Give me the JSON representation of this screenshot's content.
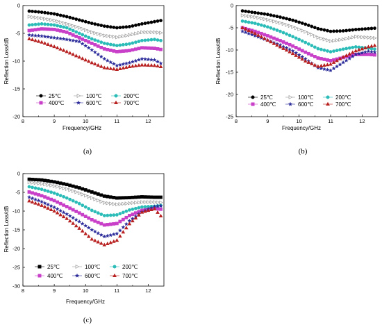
{
  "series_styles": [
    {
      "color": "#000000",
      "marker": "circle",
      "fill": true
    },
    {
      "color": "#9a9a9a",
      "marker": "triangle-right",
      "fill": false
    },
    {
      "color": "#2bbcb8",
      "marker": "circle",
      "fill": true
    },
    {
      "color": "#c83fc8",
      "marker": "square",
      "fill": true
    },
    {
      "color": "#2a2a9a",
      "marker": "star",
      "fill": true
    },
    {
      "color": "#b82020",
      "marker": "triangle-up",
      "fill": true
    }
  ],
  "series_styles_c": [
    {
      "color": "#000000",
      "marker": "square",
      "fill": true
    },
    {
      "color": "#9a9a9a",
      "marker": "triangle-right",
      "fill": false
    },
    {
      "color": "#2bbcb8",
      "marker": "circle",
      "fill": true
    },
    {
      "color": "#c83fc8",
      "marker": "square",
      "fill": true
    },
    {
      "color": "#2a2a9a",
      "marker": "star",
      "fill": true
    },
    {
      "color": "#b82020",
      "marker": "triangle-up",
      "fill": true
    }
  ],
  "chart_data": [
    {
      "type": "scatter",
      "panel_label": "(a)",
      "xlabel": "Frequency/GHz",
      "ylabel": "Reflection Loss/dB",
      "xlim": [
        8,
        12.5
      ],
      "ylim": [
        -20,
        0
      ],
      "xticks": [
        8,
        9,
        10,
        11,
        12
      ],
      "yticks": [
        0,
        -5,
        -10,
        -15,
        -20
      ],
      "xticklabels": [
        "8",
        "9",
        "10",
        "11",
        "12"
      ],
      "yticklabels": [
        "0",
        "-5",
        "-10",
        "-15",
        "-20"
      ],
      "legend_position": "lower-center",
      "x": [
        8.2,
        8.6,
        9.0,
        9.4,
        9.8,
        10.2,
        10.6,
        11.0,
        11.4,
        11.8,
        12.2,
        12.4
      ],
      "series": [
        {
          "name": "25℃",
          "values": [
            -1.0,
            -1.2,
            -1.5,
            -2.0,
            -2.6,
            -3.2,
            -3.7,
            -4.0,
            -3.8,
            -3.3,
            -2.9,
            -2.7
          ]
        },
        {
          "name": "100℃",
          "values": [
            -2.0,
            -2.3,
            -2.7,
            -3.3,
            -4.0,
            -4.8,
            -5.4,
            -5.7,
            -5.3,
            -4.8,
            -4.8,
            -4.9
          ]
        },
        {
          "name": "200℃",
          "values": [
            -3.5,
            -3.3,
            -3.5,
            -4.0,
            -5.0,
            -6.0,
            -6.8,
            -7.2,
            -6.9,
            -6.3,
            -6.1,
            -6.3
          ]
        },
        {
          "name": "400℃",
          "values": [
            -4.5,
            -4.2,
            -4.3,
            -4.8,
            -5.8,
            -6.8,
            -7.8,
            -8.3,
            -8.1,
            -7.6,
            -7.7,
            -7.9
          ]
        },
        {
          "name": "600℃",
          "values": [
            -5.3,
            -5.5,
            -5.8,
            -6.1,
            -6.5,
            -8.0,
            -9.6,
            -10.8,
            -10.3,
            -9.6,
            -9.8,
            -10.4
          ]
        },
        {
          "name": "700℃",
          "values": [
            -6.0,
            -6.6,
            -7.4,
            -8.3,
            -9.3,
            -10.3,
            -11.2,
            -11.5,
            -11.0,
            -10.7,
            -10.8,
            -11.0
          ]
        }
      ]
    },
    {
      "type": "scatter",
      "panel_label": "(b)",
      "xlabel": "Frequency/GHz",
      "ylabel": "Reflection Loss/dB",
      "xlim": [
        8,
        12.5
      ],
      "ylim": [
        -25,
        0
      ],
      "xticks": [
        8,
        9,
        10,
        11,
        12
      ],
      "yticks": [
        0,
        -5,
        -10,
        -15,
        -20,
        -25
      ],
      "xticklabels": [
        "8",
        "9",
        "10",
        "11",
        "12"
      ],
      "yticklabels": [
        "0",
        "-5",
        "-10",
        "-15",
        "-20",
        "-25"
      ],
      "legend_position": "lower-center",
      "x": [
        8.2,
        8.6,
        9.0,
        9.4,
        9.8,
        10.2,
        10.6,
        11.0,
        11.4,
        11.8,
        12.2,
        12.4
      ],
      "series": [
        {
          "name": "25℃",
          "values": [
            -1.2,
            -1.6,
            -2.0,
            -2.6,
            -3.3,
            -4.2,
            -5.2,
            -5.8,
            -5.7,
            -5.4,
            -5.2,
            -5.1
          ]
        },
        {
          "name": "100℃",
          "values": [
            -2.2,
            -2.6,
            -3.2,
            -3.9,
            -4.8,
            -5.9,
            -7.2,
            -8.0,
            -7.6,
            -7.0,
            -7.2,
            -7.3
          ]
        },
        {
          "name": "200℃",
          "values": [
            -3.5,
            -4.0,
            -4.8,
            -5.8,
            -7.0,
            -8.3,
            -9.7,
            -10.4,
            -9.8,
            -9.3,
            -9.6,
            -9.8
          ]
        },
        {
          "name": "400℃",
          "values": [
            -5.0,
            -5.8,
            -6.8,
            -7.9,
            -9.1,
            -10.5,
            -11.8,
            -12.4,
            -11.7,
            -11.0,
            -11.0,
            -11.1
          ]
        },
        {
          "name": "600℃",
          "values": [
            -5.8,
            -6.8,
            -7.8,
            -8.9,
            -10.2,
            -12.0,
            -14.0,
            -14.6,
            -12.8,
            -11.0,
            -10.3,
            -10.5
          ]
        },
        {
          "name": "700℃",
          "values": [
            -5.0,
            -6.3,
            -7.8,
            -9.3,
            -10.8,
            -12.5,
            -13.7,
            -13.2,
            -11.6,
            -10.2,
            -9.3,
            -9.0
          ]
        }
      ]
    },
    {
      "type": "scatter",
      "panel_label": "(c)",
      "xlabel": "Frequency/GHz",
      "ylabel": "Reflection Loss/dB",
      "xlim": [
        8,
        12.5
      ],
      "ylim": [
        -30,
        0
      ],
      "xticks": [
        8,
        9,
        10,
        11,
        12
      ],
      "yticks": [
        0,
        -5,
        -10,
        -15,
        -20,
        -25,
        -30
      ],
      "xticklabels": [
        "8",
        "9",
        "10",
        "11",
        "12"
      ],
      "yticklabels": [
        "0",
        "-5",
        "-10",
        "-15",
        "-20",
        "-25",
        "-30"
      ],
      "legend_position": "lower-center",
      "x": [
        8.2,
        8.6,
        9.0,
        9.4,
        9.8,
        10.2,
        10.6,
        11.0,
        11.4,
        11.8,
        12.2,
        12.4
      ],
      "series": [
        {
          "name": "25℃",
          "values": [
            -1.5,
            -1.7,
            -2.2,
            -2.9,
            -3.8,
            -4.9,
            -6.0,
            -6.5,
            -6.4,
            -6.2,
            -6.3,
            -6.3
          ]
        },
        {
          "name": "100℃",
          "values": [
            -2.3,
            -2.7,
            -3.3,
            -4.1,
            -5.2,
            -6.5,
            -7.8,
            -8.2,
            -7.9,
            -7.6,
            -7.6,
            -7.7
          ]
        },
        {
          "name": "200℃",
          "values": [
            -3.5,
            -4.2,
            -5.2,
            -6.5,
            -8.0,
            -9.8,
            -11.2,
            -11.0,
            -9.7,
            -8.9,
            -8.7,
            -8.5
          ]
        },
        {
          "name": "400℃",
          "values": [
            -4.9,
            -5.9,
            -7.2,
            -8.8,
            -10.5,
            -12.3,
            -13.7,
            -13.3,
            -11.2,
            -9.8,
            -9.3,
            -9.5
          ]
        },
        {
          "name": "600℃",
          "values": [
            -6.3,
            -7.5,
            -9.0,
            -10.8,
            -12.8,
            -15.0,
            -16.8,
            -16.0,
            -12.6,
            -10.2,
            -8.8,
            -8.6
          ]
        },
        {
          "name": "700℃",
          "values": [
            -7.3,
            -8.5,
            -10.0,
            -12.0,
            -14.6,
            -17.5,
            -19.0,
            -17.8,
            -13.4,
            -10.3,
            -9.4,
            -11.3
          ]
        }
      ]
    }
  ]
}
